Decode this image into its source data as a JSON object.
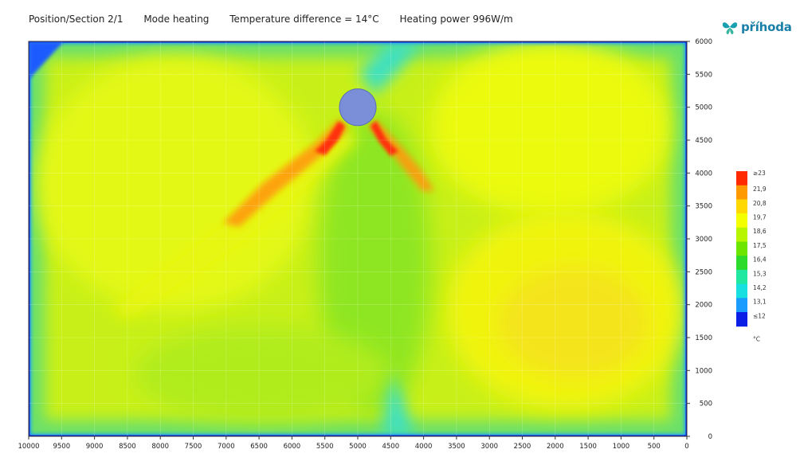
{
  "header": {
    "position": "Position/Section  2/1",
    "mode": "Mode heating",
    "temperature": "Temperature difference = 14°C",
    "power": "Heating power 996W/m"
  },
  "logo": {
    "text": "příhoda",
    "icon": "butterfly-logo-icon"
  },
  "chart_data": {
    "type": "heatmap",
    "title": "",
    "xlabel": "",
    "ylabel": "",
    "xlim": [
      10000,
      0
    ],
    "ylim": [
      0,
      6000
    ],
    "x_ticks": [
      10000,
      9500,
      9000,
      8500,
      8000,
      7500,
      7000,
      6500,
      6000,
      5500,
      5000,
      4500,
      4000,
      3500,
      3000,
      2500,
      2000,
      1500,
      1000,
      500,
      0
    ],
    "y_ticks": [
      0,
      500,
      1000,
      1500,
      2000,
      2500,
      3000,
      3500,
      4000,
      4500,
      5000,
      5500,
      6000
    ],
    "grid": true,
    "duct": {
      "x": 5000,
      "y": 5000,
      "radius": 300,
      "color": "#7b8fd9"
    },
    "legend": {
      "position": "right",
      "unit": "°C",
      "labels": [
        "≥23",
        "21,9",
        "20,8",
        "19,7",
        "18,6",
        "17,5",
        "16,4",
        "15,3",
        "14,2",
        "13,1",
        "≤12"
      ],
      "colors": [
        "#ff2a00",
        "#ff9900",
        "#ffd800",
        "#f4ff00",
        "#b8f500",
        "#6ce600",
        "#2cdb2c",
        "#20e8a0",
        "#18e0e0",
        "#1a9cff",
        "#0a1ee6"
      ]
    },
    "fields": {
      "base_temp": 19.7,
      "left_upper_zone_temp": 19.9,
      "right_lower_zone_temp": 20.6,
      "center_column_temp": 18.2,
      "wall_temp": 12
    }
  }
}
